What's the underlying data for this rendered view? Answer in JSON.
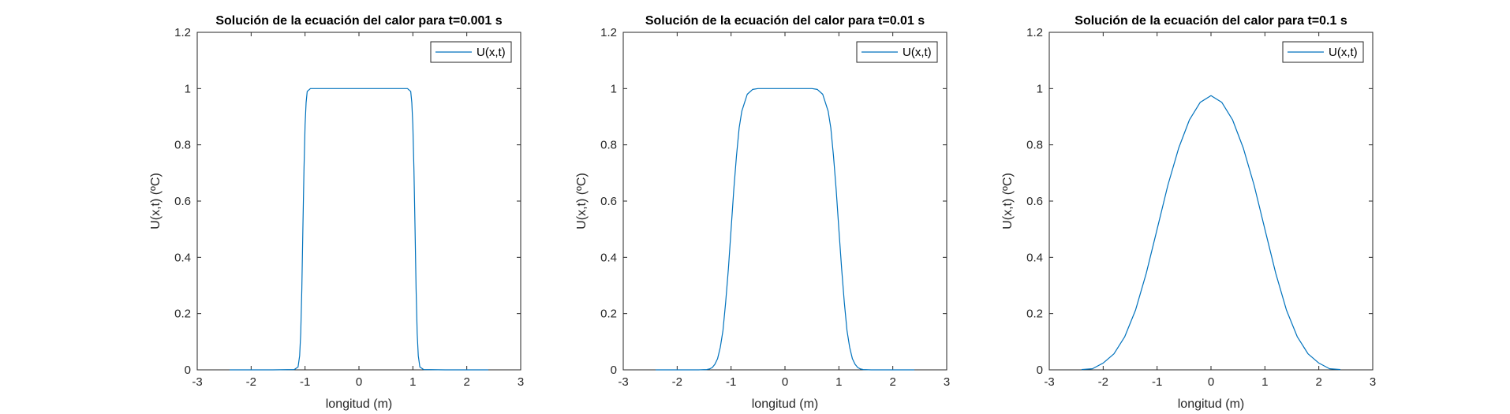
{
  "chart_data": [
    {
      "type": "line",
      "title": "Solución de la ecuación del calor para t=0.001 s",
      "xlabel": "longitud (m)",
      "ylabel": "U(x,t) (ºC)",
      "xlim": [
        -3,
        3
      ],
      "ylim": [
        0,
        1.2
      ],
      "xticks": [
        "-3",
        "-2",
        "-1",
        "0",
        "1",
        "2",
        "3"
      ],
      "yticks": [
        "0",
        "0.2",
        "0.4",
        "0.6",
        "0.8",
        "1",
        "1.2"
      ],
      "grid": false,
      "legend": "top-right",
      "series": [
        {
          "name": "U(x,t)",
          "color": "#0072BD",
          "x": [
            -2.4,
            -1.6,
            -1.2,
            -1.13,
            -1.1,
            -1.08,
            -1.06,
            -1.04,
            -1.02,
            -1.0,
            -0.98,
            -0.96,
            -0.9,
            -0.5,
            0,
            0.5,
            0.9,
            0.96,
            0.98,
            1.0,
            1.02,
            1.04,
            1.06,
            1.08,
            1.1,
            1.13,
            1.2,
            1.6,
            2.4
          ],
          "y": [
            0,
            0,
            0.001,
            0.01,
            0.05,
            0.13,
            0.29,
            0.5,
            0.71,
            0.87,
            0.95,
            0.99,
            1.0,
            1.0,
            1.0,
            1.0,
            1.0,
            0.99,
            0.95,
            0.87,
            0.71,
            0.5,
            0.29,
            0.13,
            0.05,
            0.01,
            0.001,
            0,
            0
          ]
        }
      ]
    },
    {
      "type": "line",
      "title": "Solución de la ecuación del calor para t=0.01 s",
      "xlabel": "longitud (m)",
      "ylabel": "U(x,t) (ºC)",
      "xlim": [
        -3,
        3
      ],
      "ylim": [
        0,
        1.2
      ],
      "xticks": [
        "-3",
        "-2",
        "-1",
        "0",
        "1",
        "2",
        "3"
      ],
      "yticks": [
        "0",
        "0.2",
        "0.4",
        "0.6",
        "0.8",
        "1",
        "1.2"
      ],
      "grid": false,
      "legend": "top-right",
      "series": [
        {
          "name": "U(x,t)",
          "color": "#0072BD",
          "x": [
            -2.4,
            -1.6,
            -1.45,
            -1.4,
            -1.35,
            -1.3,
            -1.25,
            -1.2,
            -1.15,
            -1.1,
            -1.05,
            -1.0,
            -0.95,
            -0.9,
            -0.85,
            -0.8,
            -0.7,
            -0.6,
            -0.5,
            0,
            0.5,
            0.6,
            0.7,
            0.8,
            0.85,
            0.9,
            0.95,
            1.0,
            1.05,
            1.1,
            1.15,
            1.2,
            1.25,
            1.3,
            1.35,
            1.4,
            1.45,
            1.6,
            2.4
          ],
          "y": [
            0,
            0,
            0.001,
            0.003,
            0.008,
            0.02,
            0.04,
            0.08,
            0.14,
            0.24,
            0.36,
            0.5,
            0.64,
            0.76,
            0.86,
            0.92,
            0.98,
            0.997,
            1.0,
            1.0,
            1.0,
            0.997,
            0.98,
            0.92,
            0.86,
            0.76,
            0.64,
            0.5,
            0.36,
            0.24,
            0.14,
            0.08,
            0.04,
            0.02,
            0.008,
            0.003,
            0.001,
            0,
            0
          ]
        }
      ]
    },
    {
      "type": "line",
      "title": "Solución de la ecuación del calor para t=0.1 s",
      "xlabel": "longitud (m)",
      "ylabel": "U(x,t) (ºC)",
      "xlim": [
        -3,
        3
      ],
      "ylim": [
        0,
        1.2
      ],
      "xticks": [
        "-3",
        "-2",
        "-1",
        "0",
        "1",
        "2",
        "3"
      ],
      "yticks": [
        "0",
        "0.2",
        "0.4",
        "0.6",
        "0.8",
        "1",
        "1.2"
      ],
      "grid": false,
      "legend": "top-right",
      "series": [
        {
          "name": "U(x,t)",
          "color": "#0072BD",
          "x": [
            -2.4,
            -2.2,
            -2.0,
            -1.8,
            -1.6,
            -1.4,
            -1.2,
            -1.0,
            -0.8,
            -0.6,
            -0.4,
            -0.2,
            0,
            0.2,
            0.4,
            0.6,
            0.8,
            1.0,
            1.2,
            1.4,
            1.6,
            1.8,
            2.0,
            2.2,
            2.4
          ],
          "y": [
            0.001,
            0.004,
            0.024,
            0.057,
            0.118,
            0.212,
            0.344,
            0.5,
            0.656,
            0.788,
            0.889,
            0.951,
            0.975,
            0.951,
            0.889,
            0.788,
            0.656,
            0.5,
            0.344,
            0.212,
            0.118,
            0.057,
            0.024,
            0.004,
            0.001
          ]
        }
      ]
    }
  ]
}
